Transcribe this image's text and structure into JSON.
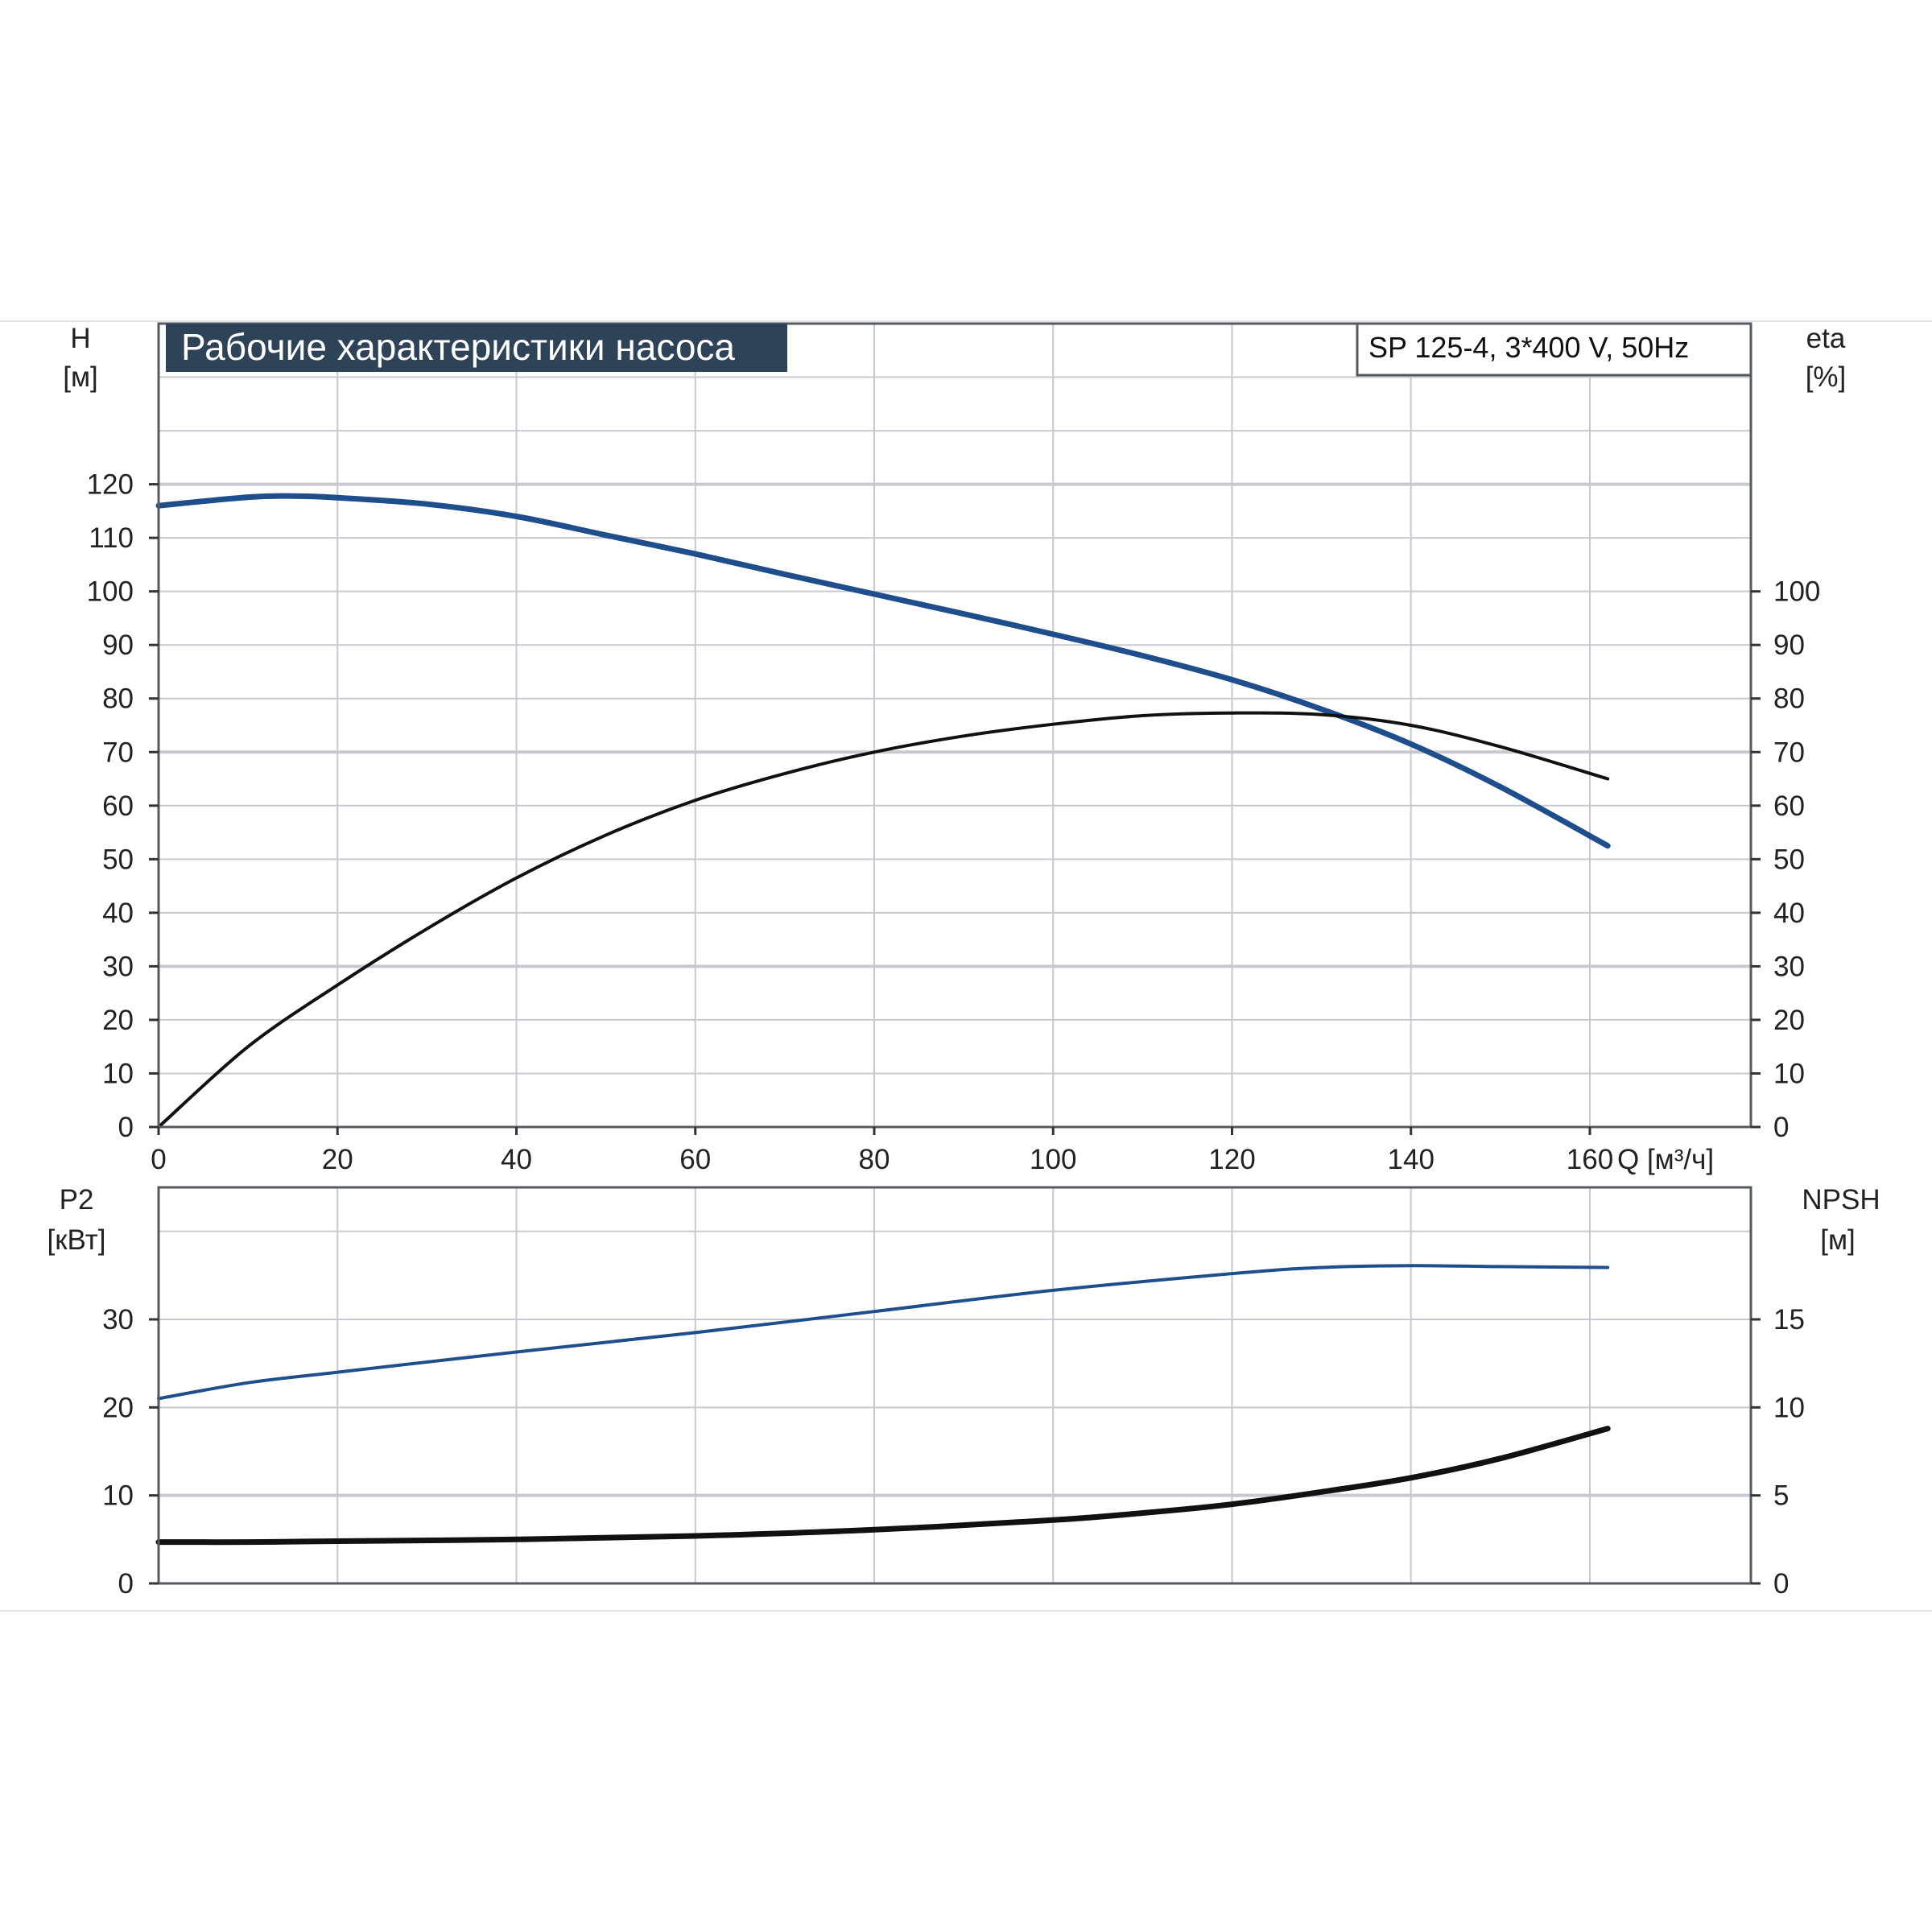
{
  "chart_data": [
    {
      "type": "line",
      "title": "Рабочие характеристики насоса",
      "subtitle": "SP 125-4, 3*400 V, 50Hz",
      "xlabel": "Q [м³/ч]",
      "ylabel_left": [
        "H",
        "[м]"
      ],
      "ylabel_right": [
        "eta",
        "[%]"
      ],
      "xlim": [
        0,
        178
      ],
      "ylim_left": [
        0,
        150
      ],
      "ylim_right": [
        0,
        150
      ],
      "x_ticks": [
        "0",
        "20",
        "40",
        "60",
        "80",
        "100",
        "120",
        "140",
        "160"
      ],
      "y_ticks_left": [
        "0",
        "10",
        "20",
        "30",
        "40",
        "50",
        "60",
        "70",
        "80",
        "90",
        "100",
        "110",
        "120"
      ],
      "y_ticks_right": [
        "0",
        "10",
        "20",
        "30",
        "40",
        "50",
        "60",
        "70",
        "80",
        "90",
        "100"
      ],
      "grid": true,
      "series": [
        {
          "name": "H",
          "axis": "left",
          "color": "#1f4e8c",
          "x": [
            0,
            10,
            15,
            20,
            30,
            40,
            50,
            60,
            70,
            80,
            90,
            100,
            110,
            120,
            130,
            140,
            150,
            162
          ],
          "y": [
            116,
            117.6,
            117.8,
            117.5,
            116.3,
            114,
            110.5,
            107,
            103.2,
            99.5,
            95.8,
            92,
            88,
            83.5,
            78,
            71.5,
            63.5,
            52.5
          ]
        },
        {
          "name": "eta",
          "axis": "right",
          "color": "#111111",
          "x": [
            0,
            10,
            20,
            30,
            40,
            50,
            60,
            70,
            80,
            90,
            100,
            110,
            120,
            130,
            140,
            150,
            162
          ],
          "y": [
            0,
            15,
            26.5,
            37,
            46.5,
            54.5,
            61,
            66,
            70,
            73,
            75.2,
            76.8,
            77.3,
            77,
            75,
            71,
            65
          ]
        }
      ]
    },
    {
      "type": "line",
      "ylabel_left": [
        "P2",
        "[кВт]"
      ],
      "ylabel_right": [
        "NPSH",
        "[м]"
      ],
      "xlim": [
        0,
        178
      ],
      "ylim_left": [
        0,
        45
      ],
      "ylim_right": [
        0,
        22.5
      ],
      "y_ticks_left": [
        "0",
        "10",
        "20",
        "30"
      ],
      "y_ticks_right": [
        "0",
        "5",
        "10",
        "15"
      ],
      "grid": true,
      "series": [
        {
          "name": "P2",
          "axis": "left",
          "color": "#1f4e8c",
          "x": [
            0,
            10,
            20,
            40,
            60,
            80,
            100,
            120,
            130,
            140,
            150,
            162
          ],
          "y": [
            21,
            22.8,
            24,
            26.3,
            28.5,
            30.9,
            33.3,
            35.2,
            35.9,
            36.1,
            36,
            35.9
          ]
        },
        {
          "name": "NPSH",
          "axis": "right",
          "color": "#111111",
          "x": [
            0,
            10,
            20,
            40,
            60,
            80,
            100,
            110,
            120,
            130,
            140,
            150,
            162
          ],
          "y": [
            2.35,
            2.35,
            2.4,
            2.5,
            2.7,
            3.05,
            3.6,
            4.0,
            4.5,
            5.2,
            6.0,
            7.1,
            8.8
          ]
        }
      ]
    }
  ]
}
